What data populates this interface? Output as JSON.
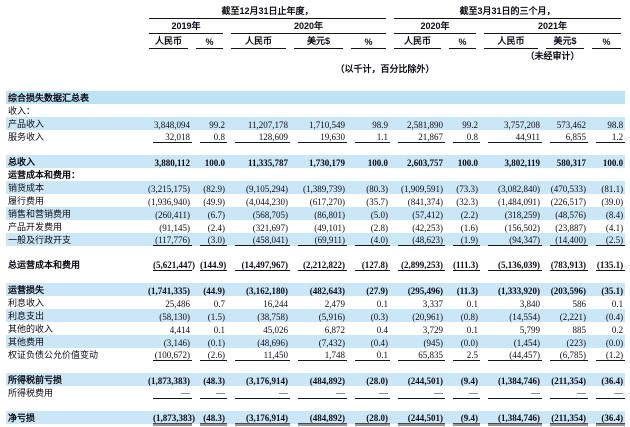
{
  "header": {
    "groups": [
      {
        "label": "截至12月31日止年度，",
        "cols": 5
      },
      {
        "label": "截至3月31日的三个月，",
        "cols": 5
      }
    ],
    "year_groups": [
      {
        "label": "2019年",
        "cols": 2
      },
      {
        "label": "2020年",
        "cols": 3
      },
      {
        "label": "2020年",
        "cols": 2
      },
      {
        "label": "2021年",
        "cols": 3
      }
    ],
    "columns": [
      "人民币",
      "%",
      "人民币",
      "美元$",
      "%",
      "人民币",
      "%",
      "人民币",
      "美元$",
      "%"
    ],
    "unaudited_note": "（未经审计）",
    "units_note": "（以千计，百分比除外）"
  },
  "colors": {
    "row_shade": "#cbe7f7",
    "section_shade": "#bde2f4",
    "rule": "#141414",
    "final_rule_gray": "#959595"
  },
  "rows": [
    {
      "label": "综合损失数据汇总表",
      "section": true,
      "bold": true,
      "shaded": true,
      "cells": []
    },
    {
      "label": "收入：",
      "cells": []
    },
    {
      "label": "产品收入",
      "shaded": true,
      "cells": [
        "3,848,094",
        "99.2",
        "11,207,178",
        "1,710,549",
        "98.9",
        "2,581,890",
        "99.2",
        "3,757,208",
        "573,462",
        "98.8"
      ]
    },
    {
      "label": "服务收入",
      "underline": true,
      "cells": [
        "32,018",
        "0.8",
        "128,609",
        "19,630",
        "1.1",
        "21,867",
        "0.8",
        "44,911",
        "6,855",
        "1.2"
      ]
    },
    {
      "spacer": true
    },
    {
      "label": "总收入",
      "bold": true,
      "shaded": true,
      "cells": [
        "3,880,112",
        "100.0",
        "11,335,787",
        "1,730,179",
        "100.0",
        "2,603,757",
        "100.0",
        "3,802,119",
        "580,317",
        "100.0"
      ]
    },
    {
      "label": "运营成本和费用：",
      "bold": true,
      "cells": []
    },
    {
      "label": "销货成本",
      "shaded": true,
      "cells": [
        "(3,215,175)",
        "(82.9)",
        "(9,105,294)",
        "(1,389,739)",
        "(80.3)",
        "(1,909,591)",
        "(73.3)",
        "(3,082,840)",
        "(470,533)",
        "(81.1)"
      ]
    },
    {
      "label": "履行费用",
      "cells": [
        "(1,936,940)",
        "(49.9)",
        "(4,044,230)",
        "(617,270)",
        "(35.7)",
        "(841,374)",
        "(32.3)",
        "(1,484,091)",
        "(226,517)",
        "(39.0)"
      ]
    },
    {
      "label": "销售和营销费用",
      "shaded": true,
      "cells": [
        "(260,411)",
        "(6.7)",
        "(568,705)",
        "(86,801)",
        "(5.0)",
        "(57,412)",
        "(2.2)",
        "(318,259)",
        "(48,576)",
        "(8.4)"
      ]
    },
    {
      "label": "产品开发费用",
      "cells": [
        "(91,145)",
        "(2.4)",
        "(321,697)",
        "(49,101)",
        "(2.8)",
        "(42,253)",
        "(1.6)",
        "(156,502)",
        "(23,887)",
        "(4.1)"
      ]
    },
    {
      "label": "一般及行政开支",
      "shaded": true,
      "underline": true,
      "cells": [
        "(117,776)",
        "(3.0)",
        "(458,041)",
        "(69,911)",
        "(4.0)",
        "(48,623)",
        "(1.9)",
        "(94,347)",
        "(14,400)",
        "(2.5)"
      ]
    },
    {
      "spacer": true
    },
    {
      "label": "总运营成本和费用",
      "bold": true,
      "underline": true,
      "cells": [
        "(5,621,447)",
        "(144.9)",
        "(14,497,967)",
        "(2,212,822)",
        "(127.8)",
        "(2,899,253)",
        "(111.3)",
        "(5,136,039)",
        "(783,913)",
        "(135.1)"
      ]
    },
    {
      "spacer": true
    },
    {
      "label": "运营损失",
      "bold": true,
      "shaded": true,
      "cells": [
        "(1,741,335)",
        "(44.9)",
        "(3,162,180)",
        "(482,643)",
        "(27.9)",
        "(295,496)",
        "(11.3)",
        "(1,333,920)",
        "(203,596)",
        "(35.1)"
      ]
    },
    {
      "label": "利息收入",
      "cells": [
        "25,486",
        "0.7",
        "16,244",
        "2,479",
        "0.1",
        "3,337",
        "0.1",
        "3,840",
        "586",
        "0.1"
      ]
    },
    {
      "label": "利息支出",
      "shaded": true,
      "cells": [
        "(58,130)",
        "(1.5)",
        "(38,758)",
        "(5,916)",
        "(0.3)",
        "(20,961)",
        "(0.8)",
        "(14,554)",
        "(2,221)",
        "(0.4)"
      ]
    },
    {
      "label": "其他的收入",
      "cells": [
        "4,414",
        "0.1",
        "45,026",
        "6,872",
        "0.4",
        "3,729",
        "0.1",
        "5,799",
        "885",
        "0.2"
      ]
    },
    {
      "label": "其他费用",
      "shaded": true,
      "cells": [
        "(3,146)",
        "(0.1)",
        "(48,696)",
        "(7,432)",
        "(0.4)",
        "(945)",
        "(0.0)",
        "(1,454)",
        "(223)",
        "(0.0)"
      ]
    },
    {
      "label": "权证负债公允价值变动",
      "underline": true,
      "cells": [
        "(100,672)",
        "(2.6)",
        "11,450",
        "1,748",
        "0.1",
        "65,835",
        "2.5",
        "(44,457)",
        "(6,785)",
        "(1.2)"
      ]
    },
    {
      "spacer": true
    },
    {
      "label": "所得税前亏损",
      "bold": true,
      "shaded": true,
      "cells": [
        "(1,873,383)",
        "(48.3)",
        "(3,176,914)",
        "(484,892)",
        "(28.0)",
        "(244,501)",
        "(9.4)",
        "(1,384,746)",
        "(211,354)",
        "(36.4)"
      ]
    },
    {
      "label": "所得税费用",
      "underline": true,
      "cells": [
        "—",
        "—",
        "—",
        "—",
        "—",
        "—",
        "—",
        "—",
        "—",
        "—"
      ]
    },
    {
      "spacer": true
    },
    {
      "label": "净亏损",
      "bold": true,
      "shaded": true,
      "final": true,
      "cells": [
        "(1,873,383)",
        "(48.3)",
        "(3,176,914)",
        "(484,892)",
        "(28.0)",
        "(244,501)",
        "(9.4)",
        "(1,384,746)",
        "(211,354)",
        "(36.4)"
      ]
    }
  ]
}
